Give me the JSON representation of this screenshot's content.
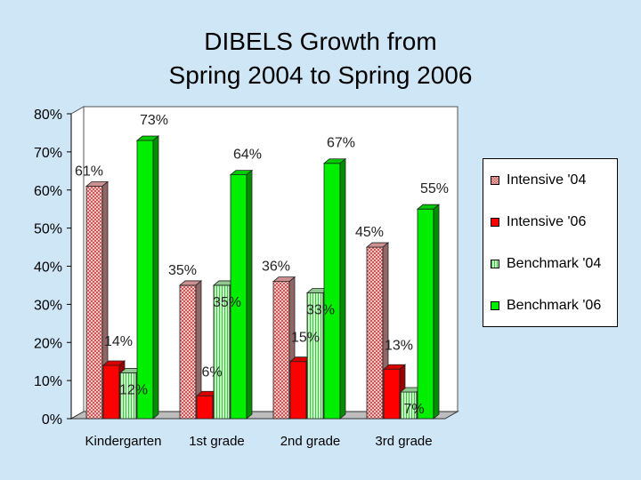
{
  "title": {
    "line1": "DIBELS Growth from",
    "line2": "Spring 2004 to Spring 2006"
  },
  "chart_data": {
    "type": "bar",
    "title": "DIBELS Growth from Spring 2004 to Spring 2006",
    "xlabel": "",
    "ylabel": "",
    "ylim": [
      0,
      80
    ],
    "yticks": [
      0,
      10,
      20,
      30,
      40,
      50,
      60,
      70,
      80
    ],
    "ytick_labels": [
      "0%",
      "10%",
      "20%",
      "30%",
      "40%",
      "50%",
      "60%",
      "70%",
      "80%"
    ],
    "categories": [
      "Kindergarten",
      "1st grade",
      "2nd grade",
      "3rd grade"
    ],
    "series": [
      {
        "name": "Intensive '04",
        "values": [
          61,
          35,
          36,
          45
        ],
        "labels": [
          "61%",
          "35%",
          "36%",
          "45%"
        ],
        "color": "#f2aaaa",
        "pattern": "checker"
      },
      {
        "name": "Intensive '06",
        "values": [
          14,
          6,
          15,
          13
        ],
        "labels": [
          "14%",
          "6%",
          "15%",
          "13%"
        ],
        "color": "#ff0000",
        "pattern": "solid"
      },
      {
        "name": "Benchmark '04",
        "values": [
          12,
          35,
          33,
          7
        ],
        "labels": [
          "12%",
          "35%",
          "33%",
          "7%"
        ],
        "color": "#a8eda8",
        "pattern": "stripe"
      },
      {
        "name": "Benchmark '06",
        "values": [
          73,
          64,
          67,
          55
        ],
        "labels": [
          "73%",
          "64%",
          "67%",
          "55%"
        ],
        "color": "#00ee00",
        "pattern": "solid"
      }
    ],
    "grid": false,
    "legend_position": "right"
  }
}
